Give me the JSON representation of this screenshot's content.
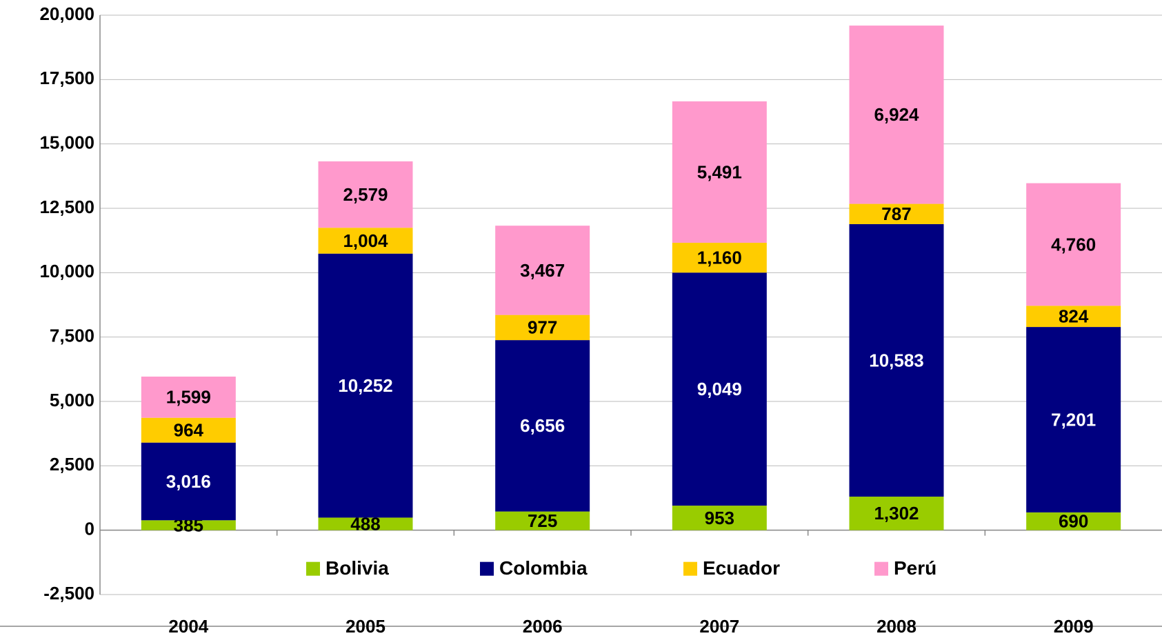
{
  "chart_data": {
    "type": "stacked_bar",
    "categories": [
      "2004",
      "2005",
      "2006",
      "2007",
      "2008",
      "2009"
    ],
    "series": [
      {
        "name": "Bolivia",
        "color": "#99cc00",
        "label_color": "#000000",
        "values": [
          385,
          488,
          725,
          953,
          1302,
          690
        ],
        "value_labels": [
          "385",
          "488",
          "725",
          "953",
          "1,302",
          "690"
        ]
      },
      {
        "name": "Colombia",
        "color": "#000080",
        "label_color": "#ffffff",
        "values": [
          3016,
          10252,
          6656,
          9049,
          10583,
          7201
        ],
        "value_labels": [
          "3,016",
          "10,252",
          "6,656",
          "9,049",
          "10,583",
          "7,201"
        ]
      },
      {
        "name": "Ecuador",
        "color": "#ffcc00",
        "label_color": "#000000",
        "values": [
          964,
          1004,
          977,
          1160,
          787,
          824
        ],
        "value_labels": [
          "964",
          "1,004",
          "977",
          "1,160",
          "787",
          "824"
        ]
      },
      {
        "name": "Perú",
        "color": "#ff99cc",
        "label_color": "#000000",
        "values": [
          1599,
          2579,
          3467,
          5491,
          6924,
          4760
        ],
        "value_labels": [
          "1,599",
          "2,579",
          "3,467",
          "5,491",
          "6,924",
          "4,760"
        ]
      }
    ],
    "ylim": [
      -2500,
      20000
    ],
    "yticks": [
      {
        "value": -2500,
        "label": "-2,500"
      },
      0,
      {
        "value": 2500,
        "label": "2,500"
      },
      {
        "value": 5000,
        "label": "5,000"
      },
      {
        "value": 7500,
        "label": "7,500"
      },
      {
        "value": 10000,
        "label": "10,000"
      },
      {
        "value": 12500,
        "label": "12,500"
      },
      {
        "value": 15000,
        "label": "15,000"
      },
      {
        "value": 17500,
        "label": "17,500"
      },
      {
        "value": 20000,
        "label": "20,000"
      }
    ],
    "grid": true,
    "legend": "lower center"
  }
}
